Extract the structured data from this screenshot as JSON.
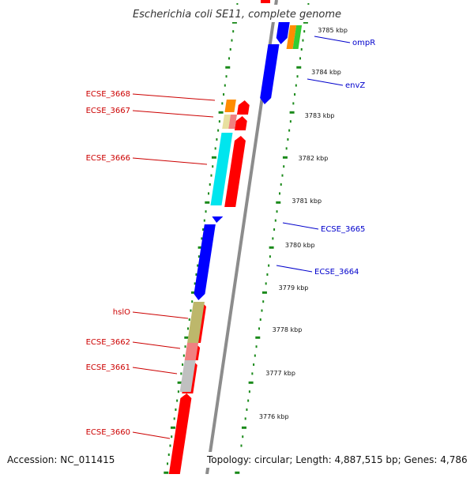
{
  "title": "Escherichia coli SE11, complete genome",
  "accession": "Accession: NC_011415",
  "topology": "Topology: circular; Length: 4,887,515 bp; Genes: 4,786",
  "colors": {
    "backbone": "#8c8c8c",
    "tick_ring": "#1a8a1a",
    "forward_gene": "#ff0000",
    "reverse_gene": "#0000ff",
    "forward_label": "#cc0000",
    "reverse_label": "#0000cc"
  },
  "kbp_ticks": [
    "3785 kbp",
    "3784 kbp",
    "3783 kbp",
    "3782 kbp",
    "3781 kbp",
    "3780 kbp",
    "3779 kbp",
    "3778 kbp",
    "3777 kbp",
    "3776 kbp"
  ],
  "forward_labels": [
    "ECSE_3668",
    "ECSE_3667",
    "ECSE_3666",
    "hslO",
    "ECSE_3662",
    "ECSE_3661",
    "ECSE_3660"
  ],
  "reverse_labels": [
    "ompR",
    "envZ",
    "ECSE_3665",
    "ECSE_3664"
  ]
}
